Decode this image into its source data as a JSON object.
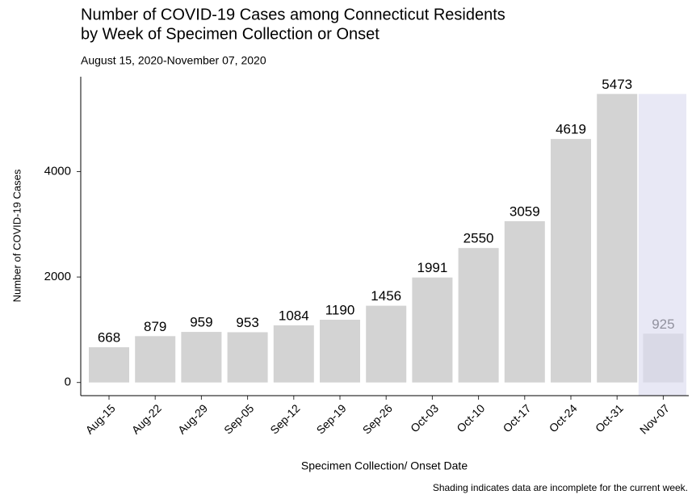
{
  "chart_data": {
    "type": "bar",
    "title": [
      "Number of COVID-19 Cases among Connecticut Residents",
      "by Week of Specimen Collection or Onset"
    ],
    "subtitle": "August 15, 2020-November 07, 2020",
    "x_label": "Specimen Collection/ Onset Date",
    "y_label": "Number of COVID-19 Cases",
    "note": "Shading indicates data are incomplete for the current week.",
    "categories": [
      "Aug-15",
      "Aug-22",
      "Aug-29",
      "Sep-05",
      "Sep-12",
      "Sep-19",
      "Sep-26",
      "Oct-03",
      "Oct-10",
      "Oct-17",
      "Oct-24",
      "Oct-31",
      "Nov-07"
    ],
    "values": [
      668,
      879,
      959,
      953,
      1084,
      1190,
      1456,
      1991,
      2550,
      3059,
      4619,
      5473,
      925
    ],
    "color": "#d3d3d3",
    "shading_color": "#dcdcf0",
    "ylim": [
      -250,
      5800
    ],
    "yticks": [
      0,
      2000,
      4000
    ],
    "grid": false
  }
}
